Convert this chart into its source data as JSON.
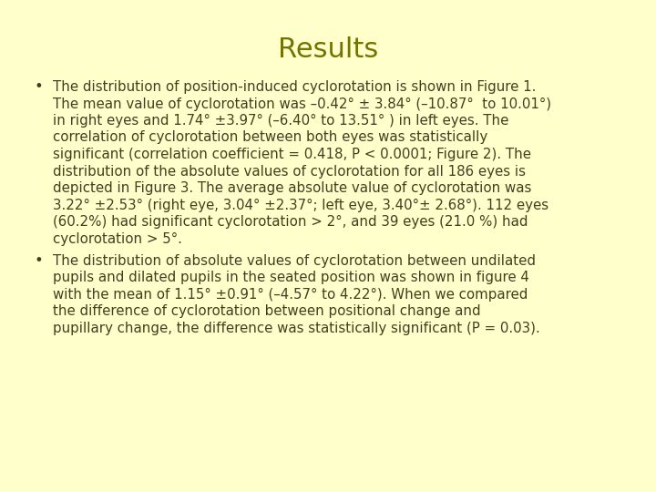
{
  "title": "Results",
  "title_color": "#737300",
  "background_color": "#ffffcc",
  "text_color": "#404020",
  "bullet1_lines": [
    "The distribution of position-induced cyclorotation is shown in Figure 1.",
    "The mean value of cyclorotation was –0.42° ± 3.84° (–10.87°  to 10.01°)",
    "in right eyes and 1.74° ±3.97° (–6.40° to 13.51° ) in left eyes. The",
    "correlation of cyclorotation between both eyes was statistically",
    "significant (correlation coefficient = 0.418, P < 0.0001; Figure 2). The",
    "distribution of the absolute values of cyclorotation for all 186 eyes is",
    "depicted in Figure 3. The average absolute value of cyclorotation was",
    "3.22° ±2.53° (right eye, 3.04° ±2.37°; left eye, 3.40°± 2.68°). 112 eyes",
    "(60.2%) had significant cyclorotation > 2°, and 39 eyes (21.0 %) had",
    "cyclorotation > 5°."
  ],
  "bullet2_lines": [
    "The distribution of absolute values of cyclorotation between undilated",
    "pupils and dilated pupils in the seated position was shown in figure 4",
    "with the mean of 1.15° ±0.91° (–4.57° to 4.22°). When we compared",
    "the difference of cyclorotation between positional change and",
    "pupillary change, the difference was statistically significant (P = 0.03)."
  ],
  "title_fontsize": 22,
  "body_fontsize": 10.8,
  "fig_width": 7.2,
  "fig_height": 5.4,
  "dpi": 100
}
